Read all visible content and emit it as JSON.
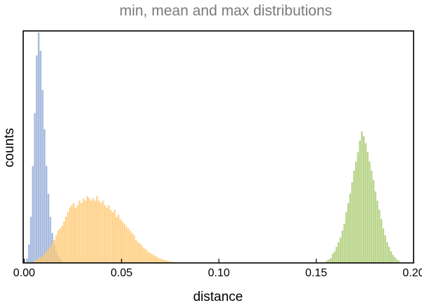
{
  "chart_data": {
    "type": "bar",
    "title": "min, mean and max distributions",
    "xlabel": "distance",
    "ylabel": "counts",
    "xlim": [
      -0.0005,
      0.2
    ],
    "ylim": [
      0,
      1.0
    ],
    "y_ticks_shown": false,
    "grid": false,
    "legend": "none",
    "x_ticks": [
      "0.00",
      "0.05",
      "0.10",
      "0.15",
      "0.20"
    ],
    "x_tick_values": [
      0.0,
      0.05,
      0.1,
      0.15,
      0.2
    ],
    "bin_width": 0.001,
    "series": [
      {
        "color": "#8fa8d6",
        "bin_start": 0.001,
        "values": [
          0.02,
          0.08,
          0.2,
          0.42,
          0.65,
          0.9,
          1.0,
          0.92,
          0.75,
          0.58,
          0.42,
          0.3,
          0.2,
          0.13,
          0.08,
          0.05,
          0.03,
          0.02,
          0.01
        ]
      },
      {
        "color": "#ffc66b",
        "bin_start": 0.005,
        "values": [
          0.01,
          0.015,
          0.02,
          0.025,
          0.03,
          0.04,
          0.05,
          0.06,
          0.07,
          0.085,
          0.1,
          0.12,
          0.14,
          0.15,
          0.16,
          0.18,
          0.2,
          0.22,
          0.24,
          0.25,
          0.26,
          0.24,
          0.25,
          0.27,
          0.26,
          0.28,
          0.27,
          0.29,
          0.28,
          0.27,
          0.28,
          0.27,
          0.29,
          0.27,
          0.26,
          0.27,
          0.25,
          0.24,
          0.25,
          0.23,
          0.22,
          0.23,
          0.2,
          0.21,
          0.19,
          0.18,
          0.17,
          0.16,
          0.15,
          0.14,
          0.13,
          0.12,
          0.1,
          0.09,
          0.085,
          0.075,
          0.065,
          0.06,
          0.05,
          0.045,
          0.04,
          0.035,
          0.03,
          0.025,
          0.02,
          0.018,
          0.015,
          0.012,
          0.01,
          0.008,
          0.006,
          0.004,
          0.003
        ]
      },
      {
        "color": "#a6c96a",
        "bin_start": 0.155,
        "values": [
          0.01,
          0.015,
          0.02,
          0.04,
          0.05,
          0.07,
          0.09,
          0.11,
          0.14,
          0.17,
          0.22,
          0.26,
          0.3,
          0.35,
          0.4,
          0.44,
          0.48,
          0.53,
          0.57,
          0.55,
          0.52,
          0.48,
          0.44,
          0.4,
          0.36,
          0.31,
          0.27,
          0.23,
          0.19,
          0.15,
          0.12,
          0.09,
          0.07,
          0.05,
          0.035,
          0.025,
          0.015,
          0.01
        ]
      }
    ]
  }
}
